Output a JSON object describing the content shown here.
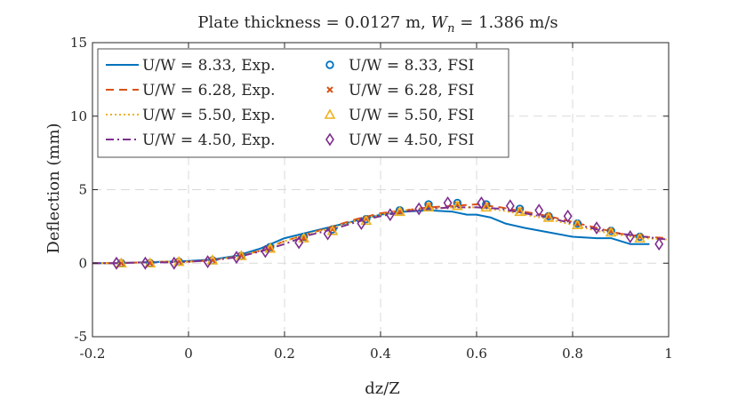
{
  "chart_data": {
    "type": "line",
    "title": "Plate thickness = 0.0127 m, W_n = 1.386 m/s",
    "title_parts": {
      "prefix": "Plate thickness = 0.0127 m, ",
      "var_main": "W",
      "var_sub": "n",
      "suffix": " = 1.386 m/s"
    },
    "xlabel": "dz/Z",
    "ylabel": "Deflection (mm)",
    "xlim": [
      -0.2,
      1
    ],
    "ylim": [
      -5,
      15
    ],
    "xticks": [
      -0.2,
      0,
      0.2,
      0.4,
      0.6,
      0.8,
      1
    ],
    "xtick_labels": [
      "-0.2",
      "0",
      "0.2",
      "0.4",
      "0.6",
      "0.8",
      "1"
    ],
    "yticks": [
      -5,
      0,
      5,
      10,
      15
    ],
    "ytick_labels": [
      "-5",
      "0",
      "5",
      "10",
      "15"
    ],
    "grid": true,
    "legend_position": "top-left",
    "colors": {
      "blue": "#0072BD",
      "orange": "#D95319",
      "yellow": "#EDB120",
      "purple": "#7E2F8E",
      "grid": "#d9d9d9",
      "axis": "#262626"
    },
    "series": [
      {
        "name": "U/W = 8.33, Exp.",
        "kind": "line",
        "style": "solid",
        "color": "#0072BD",
        "x": [
          -0.2,
          -0.15,
          -0.1,
          -0.05,
          0.0,
          0.05,
          0.1,
          0.15,
          0.2,
          0.25,
          0.3,
          0.35,
          0.4,
          0.45,
          0.5,
          0.55,
          0.58,
          0.6,
          0.63,
          0.66,
          0.7,
          0.75,
          0.8,
          0.85,
          0.88,
          0.92,
          0.96
        ],
        "y": [
          0.0,
          0.0,
          0.05,
          0.1,
          0.15,
          0.25,
          0.5,
          1.0,
          1.7,
          2.1,
          2.5,
          2.9,
          3.3,
          3.5,
          3.6,
          3.5,
          3.3,
          3.3,
          3.1,
          2.7,
          2.4,
          2.1,
          1.8,
          1.7,
          1.7,
          1.3,
          1.3
        ]
      },
      {
        "name": "U/W = 6.28, Exp.",
        "kind": "line",
        "style": "dashed",
        "color": "#D95319",
        "x": [
          -0.2,
          -0.15,
          -0.1,
          -0.05,
          0.0,
          0.05,
          0.1,
          0.15,
          0.2,
          0.25,
          0.3,
          0.35,
          0.4,
          0.45,
          0.5,
          0.55,
          0.6,
          0.65,
          0.7,
          0.75,
          0.8,
          0.85,
          0.9,
          0.95,
          1.0
        ],
        "y": [
          0.0,
          0.0,
          0.05,
          0.1,
          0.1,
          0.2,
          0.45,
          0.85,
          1.5,
          2.0,
          2.5,
          3.0,
          3.4,
          3.6,
          3.8,
          3.9,
          4.0,
          3.8,
          3.5,
          3.2,
          2.8,
          2.4,
          2.0,
          1.8,
          1.7
        ]
      },
      {
        "name": "U/W = 5.50, Exp.",
        "kind": "line",
        "style": "dotted",
        "color": "#EDB120",
        "x": [
          -0.2,
          -0.15,
          -0.1,
          -0.05,
          0.0,
          0.05,
          0.1,
          0.15,
          0.2,
          0.25,
          0.3,
          0.35,
          0.4,
          0.45,
          0.5,
          0.55,
          0.6,
          0.65,
          0.7,
          0.75,
          0.8,
          0.85,
          0.9,
          0.95,
          1.0
        ],
        "y": [
          0.0,
          0.0,
          0.05,
          0.1,
          0.1,
          0.2,
          0.45,
          0.85,
          1.5,
          2.0,
          2.4,
          2.9,
          3.3,
          3.6,
          3.7,
          3.8,
          3.8,
          3.6,
          3.3,
          3.0,
          2.6,
          2.2,
          1.9,
          1.7,
          1.6
        ]
      },
      {
        "name": "U/W = 4.50, Exp.",
        "kind": "line",
        "style": "dashdot",
        "color": "#7E2F8E",
        "x": [
          -0.2,
          -0.15,
          -0.1,
          -0.05,
          0.0,
          0.05,
          0.1,
          0.15,
          0.2,
          0.25,
          0.3,
          0.35,
          0.4,
          0.45,
          0.5,
          0.55,
          0.6,
          0.65,
          0.7,
          0.75,
          0.8,
          0.85,
          0.9,
          0.95,
          1.0
        ],
        "y": [
          0.0,
          0.0,
          0.05,
          0.05,
          0.1,
          0.2,
          0.4,
          0.8,
          1.3,
          1.9,
          2.3,
          2.8,
          3.2,
          3.5,
          3.7,
          3.8,
          3.8,
          3.7,
          3.4,
          3.1,
          2.7,
          2.3,
          2.0,
          1.8,
          1.6
        ]
      },
      {
        "name": "U/W = 8.33, FSI",
        "kind": "markers",
        "marker": "circle",
        "color": "#0072BD",
        "x": [
          -0.14,
          -0.08,
          -0.02,
          0.05,
          0.11,
          0.17,
          0.24,
          0.3,
          0.37,
          0.44,
          0.5,
          0.56,
          0.62,
          0.69,
          0.75,
          0.81,
          0.88,
          0.94
        ],
        "y": [
          0.0,
          0.0,
          0.1,
          0.2,
          0.5,
          1.1,
          1.8,
          2.3,
          3.0,
          3.6,
          4.0,
          4.1,
          4.0,
          3.7,
          3.2,
          2.7,
          2.2,
          1.8
        ]
      },
      {
        "name": "U/W = 6.28, FSI",
        "kind": "markers",
        "marker": "x",
        "color": "#D95319",
        "x": [
          -0.14,
          -0.08,
          -0.02,
          0.05,
          0.11,
          0.17,
          0.24,
          0.3,
          0.37,
          0.44,
          0.5,
          0.56,
          0.62,
          0.69,
          0.75,
          0.81,
          0.88,
          0.94
        ],
        "y": [
          0.0,
          0.0,
          0.1,
          0.2,
          0.5,
          1.0,
          1.7,
          2.3,
          3.0,
          3.5,
          3.9,
          4.0,
          3.9,
          3.6,
          3.2,
          2.7,
          2.2,
          1.8
        ]
      },
      {
        "name": "U/W = 5.50, FSI",
        "kind": "markers",
        "marker": "triangle",
        "color": "#EDB120",
        "x": [
          -0.14,
          -0.08,
          -0.02,
          0.05,
          0.11,
          0.17,
          0.24,
          0.3,
          0.37,
          0.44,
          0.5,
          0.56,
          0.62,
          0.69,
          0.75,
          0.81,
          0.88,
          0.94
        ],
        "y": [
          0.0,
          0.0,
          0.1,
          0.2,
          0.5,
          1.0,
          1.7,
          2.2,
          2.9,
          3.5,
          3.8,
          3.9,
          3.8,
          3.5,
          3.1,
          2.6,
          2.1,
          1.7
        ]
      },
      {
        "name": "U/W = 4.50, FSI",
        "kind": "markers",
        "marker": "diamond",
        "color": "#7E2F8E",
        "x": [
          -0.15,
          -0.09,
          -0.03,
          0.04,
          0.1,
          0.16,
          0.23,
          0.29,
          0.36,
          0.42,
          0.48,
          0.54,
          0.61,
          0.67,
          0.73,
          0.79,
          0.85,
          0.92,
          0.98
        ],
        "y": [
          0.0,
          0.0,
          0.0,
          0.1,
          0.4,
          0.8,
          1.4,
          2.0,
          2.7,
          3.3,
          3.7,
          4.1,
          4.1,
          3.9,
          3.6,
          3.2,
          2.4,
          1.8,
          1.3
        ]
      }
    ]
  }
}
